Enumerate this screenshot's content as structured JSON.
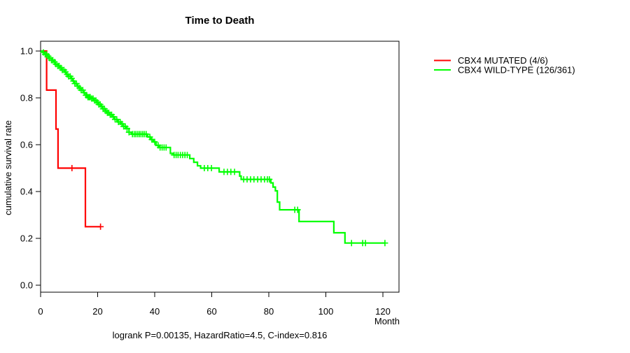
{
  "chart_data": {
    "type": "line",
    "chart_kind": "kaplan_meier_step",
    "title": "Time to Death",
    "xlabel": "Month",
    "ylabel": "cumulative survival rate",
    "annotation": "logrank P=0.00135, HazardRatio=4.5, C-index=0.816",
    "x_ticks": [
      0,
      20,
      40,
      60,
      80,
      100,
      120
    ],
    "y_ticks": [
      0.0,
      0.2,
      0.4,
      0.6,
      0.8,
      1.0
    ],
    "y_tick_labels": [
      "0.0",
      "0.2",
      "0.4",
      "0.6",
      "0.8",
      "1.0"
    ],
    "xlim": [
      0,
      125.6
    ],
    "ylim": [
      0.0,
      1.0
    ],
    "grid": false,
    "legend_position": "right-outside",
    "series": [
      {
        "name": "CBX4 MUTATED (4/6)",
        "color": "#ff0000",
        "steps": [
          [
            0,
            1.0
          ],
          [
            2.1,
            0.833
          ],
          [
            5.4,
            0.667
          ],
          [
            6.1,
            0.5
          ],
          [
            15.7,
            0.25
          ]
        ],
        "end_month": 21.0,
        "censor_months": [
          11.0,
          21.0
        ]
      },
      {
        "name": "CBX4 WILD-TYPE (126/361)",
        "color": "#00ff00",
        "steps": [
          [
            0,
            1.0
          ],
          [
            0.8,
            0.994
          ],
          [
            1.5,
            0.986
          ],
          [
            2.2,
            0.978
          ],
          [
            3.0,
            0.97
          ],
          [
            3.8,
            0.961
          ],
          [
            4.5,
            0.953
          ],
          [
            5.2,
            0.944
          ],
          [
            6.0,
            0.936
          ],
          [
            6.8,
            0.928
          ],
          [
            7.5,
            0.919
          ],
          [
            8.3,
            0.911
          ],
          [
            9.0,
            0.9
          ],
          [
            9.8,
            0.892
          ],
          [
            10.5,
            0.883
          ],
          [
            11.3,
            0.872
          ],
          [
            12.0,
            0.861
          ],
          [
            12.8,
            0.85
          ],
          [
            13.5,
            0.842
          ],
          [
            14.2,
            0.833
          ],
          [
            15.0,
            0.822
          ],
          [
            15.8,
            0.811
          ],
          [
            16.5,
            0.803
          ],
          [
            17.5,
            0.797
          ],
          [
            18.5,
            0.789
          ],
          [
            19.5,
            0.781
          ],
          [
            20.3,
            0.772
          ],
          [
            21.0,
            0.764
          ],
          [
            21.8,
            0.753
          ],
          [
            22.5,
            0.744
          ],
          [
            23.3,
            0.736
          ],
          [
            24.0,
            0.728
          ],
          [
            25.0,
            0.719
          ],
          [
            26.0,
            0.708
          ],
          [
            27.0,
            0.697
          ],
          [
            28.0,
            0.689
          ],
          [
            29.0,
            0.678
          ],
          [
            30.0,
            0.669
          ],
          [
            31.0,
            0.653
          ],
          [
            31.8,
            0.645
          ],
          [
            37.5,
            0.633
          ],
          [
            38.5,
            0.622
          ],
          [
            39.5,
            0.612
          ],
          [
            40.5,
            0.597
          ],
          [
            41.5,
            0.588
          ],
          [
            45.5,
            0.563
          ],
          [
            46.5,
            0.556
          ],
          [
            52.3,
            0.541
          ],
          [
            53.7,
            0.525
          ],
          [
            55.0,
            0.51
          ],
          [
            56.1,
            0.5
          ],
          [
            62.6,
            0.484
          ],
          [
            69.8,
            0.466
          ],
          [
            70.3,
            0.452
          ],
          [
            80.7,
            0.437
          ],
          [
            81.5,
            0.419
          ],
          [
            82.3,
            0.403
          ],
          [
            83.0,
            0.355
          ],
          [
            83.8,
            0.322
          ],
          [
            90.6,
            0.272
          ],
          [
            102.8,
            0.224
          ],
          [
            106.7,
            0.18
          ]
        ],
        "end_month": 120.7,
        "censor_months": [
          1.0,
          1.6,
          2.1,
          2.7,
          3.2,
          3.8,
          4.3,
          4.9,
          5.4,
          6.0,
          6.5,
          7.1,
          7.6,
          8.2,
          8.7,
          9.3,
          9.8,
          10.4,
          10.9,
          11.5,
          12.0,
          12.6,
          13.1,
          13.7,
          14.2,
          14.8,
          15.3,
          15.9,
          16.2,
          16.6,
          17.0,
          17.4,
          17.9,
          18.4,
          18.9,
          19.4,
          19.9,
          20.4,
          20.9,
          21.4,
          21.9,
          22.4,
          22.9,
          23.4,
          23.9,
          24.4,
          24.9,
          25.5,
          26.1,
          26.7,
          27.3,
          27.9,
          28.5,
          29.1,
          29.7,
          30.3,
          31.0,
          32.2,
          32.8,
          33.4,
          34.0,
          34.6,
          35.2,
          35.8,
          36.4,
          37.0,
          38.3,
          39.0,
          40.0,
          41.2,
          41.9,
          42.6,
          43.3,
          44.0,
          46.8,
          47.5,
          48.2,
          49.0,
          49.8,
          50.6,
          51.4,
          57.4,
          58.6,
          59.9,
          64.3,
          65.5,
          66.7,
          68.0,
          71.2,
          72.4,
          73.6,
          74.8,
          76.1,
          77.3,
          78.5,
          79.5,
          80.2,
          89.1,
          90.1,
          109.0,
          112.9,
          113.9,
          120.7
        ]
      }
    ]
  }
}
